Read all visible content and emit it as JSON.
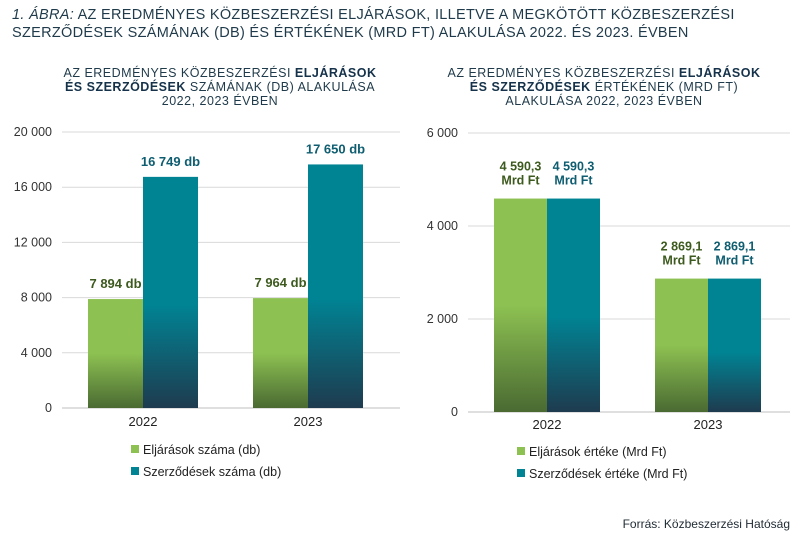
{
  "figure": {
    "number": "1. ÁBRA:",
    "title": "AZ EREDMÉNYES KÖZBESZERZÉSI ELJÁRÁSOK, ILLETVE A MEGKÖTÖTT KÖZBESZERZÉSI SZERZŐDÉSEK SZÁMÁNAK (DB) ÉS ÉRTÉKÉNEK (MRD FT) ALAKULÁSA 2022. ÉS 2023. ÉVBEN"
  },
  "source": "Forrás: Közbeszerzési Hatóság",
  "colors": {
    "green": "#8dc152",
    "teal": "#008494",
    "dark": "#1e3b4f",
    "grid": "#d9d9d9"
  },
  "chart_data": [
    {
      "type": "bar",
      "title_parts": {
        "pre": "AZ EREDMÉNYES KÖZBESZERZÉSI ",
        "bold1": "ELJÁRÁSOK",
        "bold2": "ÉS SZERZŐDÉSEK",
        "post": " SZÁMÁNAK (DB) ALAKULÁSA",
        "line3": "2022, 2023 ÉVBEN"
      },
      "categories": [
        "2022",
        "2023"
      ],
      "series": [
        {
          "name": "Eljárások száma (db)",
          "values": [
            7894,
            7964
          ],
          "labels": [
            "7 894 db",
            "7 964 db"
          ]
        },
        {
          "name": "Szerződések száma (db)",
          "values": [
            16749,
            17650
          ],
          "labels": [
            "16 749 db",
            "17 650 db"
          ]
        }
      ],
      "ylim": [
        0,
        20000
      ],
      "yticks": [
        0,
        4000,
        8000,
        12000,
        16000,
        20000
      ],
      "ytick_labels": [
        "0",
        "4 000",
        "8 000",
        "12 000",
        "16 000",
        "20 000"
      ],
      "grid": true,
      "legend": "bottom"
    },
    {
      "type": "bar",
      "title_parts": {
        "pre": "AZ EREDMÉNYES KÖZBESZERZÉSI ",
        "bold1": "ELJÁRÁSOK",
        "bold2": "ÉS SZERZŐDÉSEK",
        "post": " ÉRTÉKÉNEK (MRD FT)",
        "line3": "ALAKULÁSA 2022, 2023 ÉVBEN"
      },
      "categories": [
        "2022",
        "2023"
      ],
      "series": [
        {
          "name": "Eljárások értéke (Mrd Ft)",
          "values": [
            4590.3,
            2869.1
          ],
          "labels": [
            [
              "4 590,3",
              "Mrd Ft"
            ],
            [
              "2 869,1",
              "Mrd Ft"
            ]
          ]
        },
        {
          "name": "Szerződések értéke (Mrd Ft)",
          "values": [
            4590.3,
            2869.1
          ],
          "labels": [
            [
              "4 590,3",
              "Mrd Ft"
            ],
            [
              "2 869,1",
              "Mrd Ft"
            ]
          ]
        }
      ],
      "ylim": [
        0,
        6000
      ],
      "yticks": [
        0,
        2000,
        4000,
        6000
      ],
      "ytick_labels": [
        "0",
        "2 000",
        "4 000",
        "6 000"
      ],
      "grid": true,
      "legend": "bottom"
    }
  ]
}
